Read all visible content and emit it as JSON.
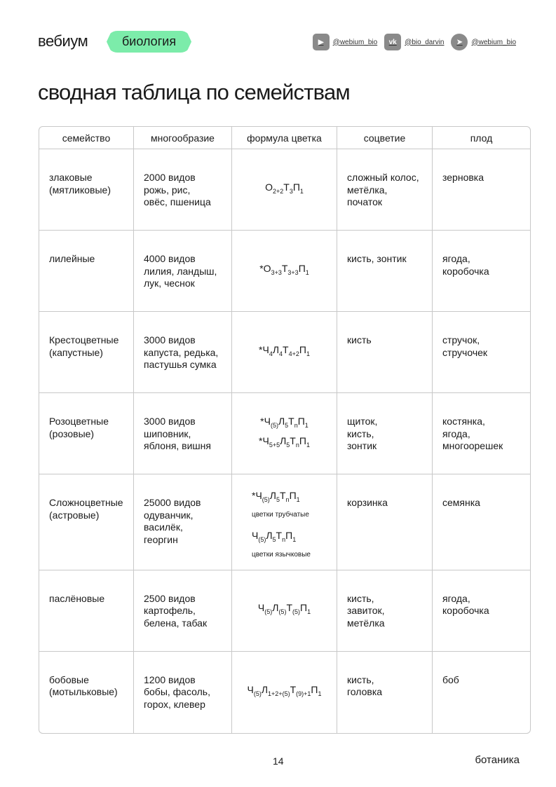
{
  "header": {
    "logo": "вебиум",
    "subject": "биология",
    "socials": [
      {
        "icon": "youtube-icon",
        "glyph": "▶",
        "handle": "@webium_bio"
      },
      {
        "icon": "vk-icon",
        "glyph": "vk",
        "handle": "@bio_darvin"
      },
      {
        "icon": "telegram-icon",
        "glyph": "➤",
        "handle": "@webium_bio"
      }
    ]
  },
  "title": "сводная таблица по семействам",
  "accent": "#7cecaa",
  "table": {
    "columns": [
      "семейство",
      "многообразие",
      "формула цветка",
      "соцветие",
      "плод"
    ],
    "rows": [
      {
        "family": [
          "злаковые",
          "(мятликовые)"
        ],
        "variety": [
          "2000 видов",
          "рожь, рис,",
          "овёс, пшеница"
        ],
        "formulas": [
          {
            "parts": [
              [
                "О",
                "2+2"
              ],
              [
                "Т",
                "3"
              ],
              [
                "П",
                "1"
              ]
            ]
          }
        ],
        "inflorescence": [
          "сложный колос,",
          "метёлка,",
          "початок"
        ],
        "fruit": [
          "зерновка"
        ]
      },
      {
        "family": [
          "лилейные"
        ],
        "variety": [
          "4000 видов",
          "лилия, ландыш,",
          "лук, чеснок"
        ],
        "formulas": [
          {
            "parts": [
              [
                "*О",
                "3+3"
              ],
              [
                "Т",
                "3+3"
              ],
              [
                "П",
                "1"
              ]
            ]
          }
        ],
        "inflorescence": [
          "кисть, зонтик"
        ],
        "fruit": [
          "ягода,",
          "коробочка"
        ]
      },
      {
        "family": [
          "Крестоцветные",
          "(капустные)"
        ],
        "variety": [
          "3000 видов",
          "капуста, редька,",
          "пастушья сумка"
        ],
        "formulas": [
          {
            "parts": [
              [
                "*Ч",
                "4"
              ],
              [
                "Л",
                "4"
              ],
              [
                "Т",
                "4+2"
              ],
              [
                "П",
                "1"
              ]
            ]
          }
        ],
        "inflorescence": [
          "кисть"
        ],
        "fruit": [
          "стручок,",
          "стручочек"
        ]
      },
      {
        "family": [
          "Розоцветные",
          "(розовые)"
        ],
        "variety": [
          "3000 видов",
          "шиповник,",
          "яблоня, вишня"
        ],
        "formulas": [
          {
            "parts": [
              [
                "*Ч",
                "(5)"
              ],
              [
                "Л",
                "5"
              ],
              [
                "Т",
                "n"
              ],
              [
                "П",
                "1"
              ]
            ]
          },
          {
            "parts": [
              [
                "*Ч",
                "5+5"
              ],
              [
                "Л",
                "5"
              ],
              [
                "Т",
                "n"
              ],
              [
                "П",
                "1"
              ]
            ]
          }
        ],
        "inflorescence": [
          "щиток,",
          "кисть,",
          "зонтик"
        ],
        "fruit": [
          "костянка,",
          "ягода,",
          "многоорешек"
        ]
      },
      {
        "family": [
          "Сложноцветные",
          "(астровые)"
        ],
        "variety": [
          "25000 видов",
          "одуванчик,",
          "василёк,",
          "георгин"
        ],
        "formulas": [
          {
            "parts": [
              [
                "*Ч",
                "(5)"
              ],
              [
                "Л",
                "5"
              ],
              [
                "Т",
                "n"
              ],
              [
                "П",
                "1"
              ]
            ],
            "note": "цветки трубчатые"
          },
          {
            "parts": [
              [
                "Ч",
                "(5)"
              ],
              [
                "Л",
                "5"
              ],
              [
                "Т",
                "n"
              ],
              [
                "П",
                "1"
              ]
            ],
            "note": "цветки язычковые"
          }
        ],
        "inflorescence": [
          "корзинка"
        ],
        "fruit": [
          "семянка"
        ]
      },
      {
        "family": [
          "паслёновые"
        ],
        "variety": [
          "2500 видов",
          "картофель,",
          "белена, табак"
        ],
        "formulas": [
          {
            "parts": [
              [
                "Ч",
                "(5)"
              ],
              [
                "Л",
                "(5)"
              ],
              [
                "Т",
                "(5)"
              ],
              [
                "П",
                "1"
              ]
            ]
          }
        ],
        "inflorescence": [
          "кисть,",
          "завиток,",
          "метёлка"
        ],
        "fruit": [
          "ягода,",
          "коробочка"
        ]
      },
      {
        "family": [
          "бобовые",
          "(мотыльковые)"
        ],
        "variety": [
          "1200 видов",
          "бобы, фасоль,",
          "горох, клевер"
        ],
        "formulas": [
          {
            "parts": [
              [
                "Ч",
                "(5)"
              ],
              [
                "Л",
                "1+2+(5)"
              ],
              [
                "Т",
                "(9)+1"
              ],
              [
                "П",
                "1"
              ]
            ]
          }
        ],
        "inflorescence": [
          "кисть,",
          "головка"
        ],
        "fruit": [
          "боб"
        ]
      }
    ]
  },
  "footer": {
    "page": "14",
    "section": "ботаника"
  }
}
